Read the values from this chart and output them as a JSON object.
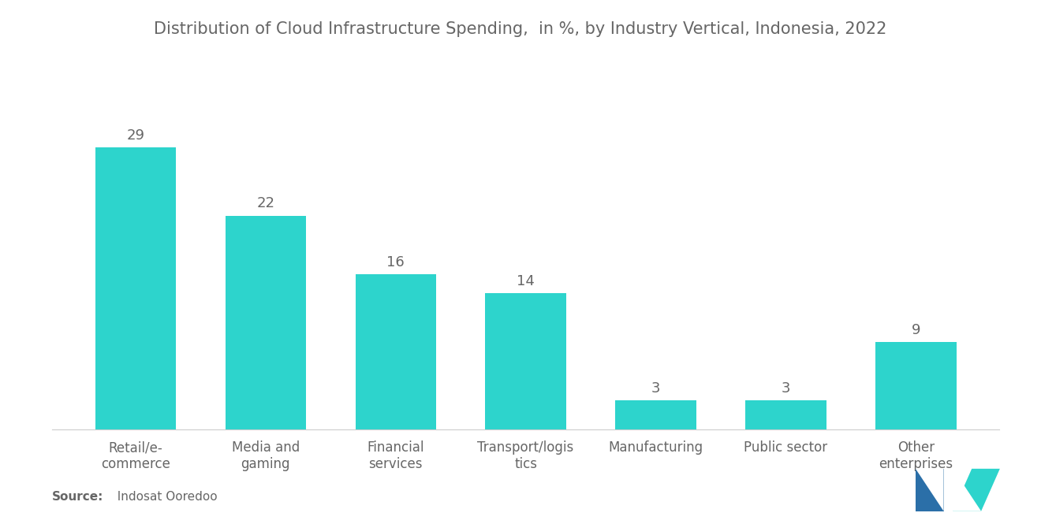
{
  "title": "Distribution of Cloud Infrastructure Spending,  in %, by Industry Vertical, Indonesia, 2022",
  "categories": [
    "Retail/e-\ncommerce",
    "Media and\ngaming",
    "Financial\nservices",
    "Transport/logis\ntics",
    "Manufacturing",
    "Public sector",
    "Other\nenterprises"
  ],
  "values": [
    29,
    22,
    16,
    14,
    3,
    3,
    9
  ],
  "bar_color": "#2DD4CC",
  "value_labels": [
    "29",
    "22",
    "16",
    "14",
    "3",
    "3",
    "9"
  ],
  "source_bold": "Source:",
  "source_text": "  Indosat Ooredoo",
  "title_fontsize": 15,
  "label_fontsize": 12,
  "value_fontsize": 13,
  "source_fontsize": 11,
  "background_color": "#ffffff",
  "text_color": "#666666",
  "ylim": [
    0,
    35
  ],
  "logo_left_color": "#2B6FA8",
  "logo_right_color": "#2DD4CC"
}
